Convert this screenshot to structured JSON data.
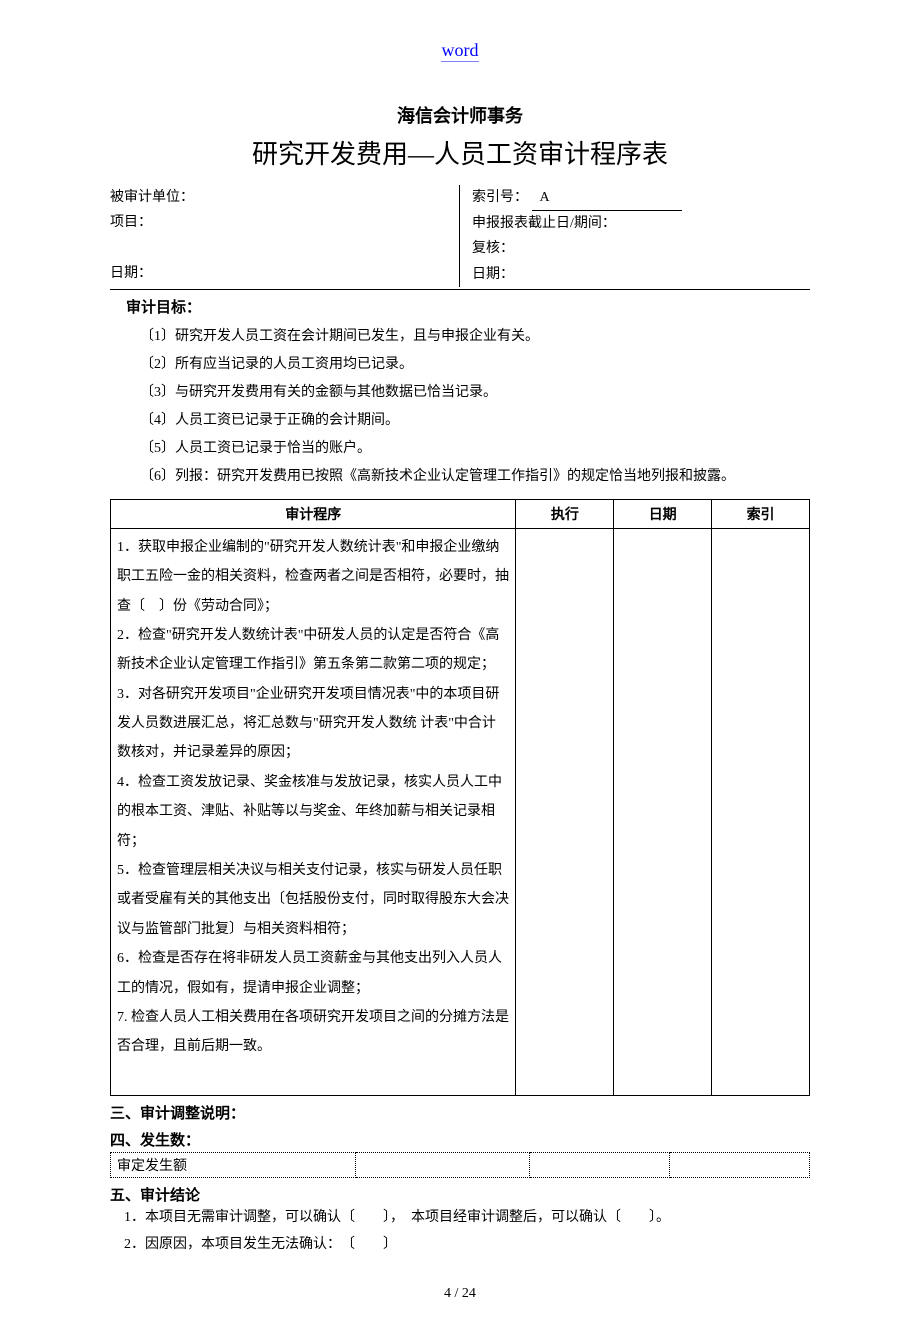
{
  "header_link": "word",
  "firm_name": "海信会计师事务",
  "document_title": "研究开发费用—人员工资审计程序表",
  "info": {
    "left": {
      "unit_label": "被审计单位：",
      "project_label": "项目：",
      "date_label": "日期："
    },
    "right": {
      "ref_label": "索引号：",
      "ref_value": "A",
      "period_label": "申报报表截止日/期间：",
      "review_label": "复核：",
      "date_label": "日期："
    }
  },
  "objectives": {
    "heading": "审计目标：",
    "items": [
      "〔1〕研究开发人员工资在会计期间已发生，且与申报企业有关。",
      "〔2〕所有应当记录的人员工资用均已记录。",
      "〔3〕与研究开发费用有关的金额与其他数据已恰当记录。",
      "〔4〕人员工资已记录于正确的会计期间。",
      "〔5〕人员工资已记录于恰当的账户。",
      "〔6〕列报：研究开发费用已按照《高新技术企业认定管理工作指引》的规定恰当地列报和披露。"
    ]
  },
  "procedures_table": {
    "headers": {
      "c1": "审计程序",
      "c2": "执行",
      "c3": "日期",
      "c4": "索引"
    },
    "steps_text": "1．获取申报企业编制的\"研究开发人数统计表\"和申报企业缴纳职工五险一金的相关资料，检查两者之间是否相符，必要时，抽查〔　〕份《劳动合同》；\n2．检查\"研究开发人数统计表\"中研发人员的认定是否符合《高新技术企业认定管理工作指引》第五条第二款第二项的规定；\n3．对各研究开发项目\"企业研究开发项目情况表\"中的本项目研发人员数进展汇总，将汇总数与\"研究开发人数统 计表\"中合计数核对，并记录差异的原因；\n4．检查工资发放记录、奖金核准与发放记录，核实人员人工中的根本工资、津贴、补贴等以与奖金、年终加薪与相关记录相符；\n5．检查管理层相关决议与相关支付记录，核实与研发人员任职或者受雇有关的其他支出〔包括股份支付，同时取得股东大会决议与监管部门批复〕与相关资料相符；\n6．检查是否存在将非研发人员工资薪金与其他支出列入人员人工的情况，假如有，提请申报企业调整；\n7. 检查人员人工相关费用在各项研究开发项目之间的分摊方法是否合理，且前后期一致。"
  },
  "post_sections": {
    "adj_heading": "三、审计调整说明：",
    "fss_heading": "四、发生数：",
    "fss_row_label": "审定发生额",
    "concl_heading": "五、审计结论",
    "concl_1": "1．本项目无需审计调整，可以确认〔　　〕，　本项目经审计调整后，可以确认〔　　〕。",
    "concl_2": "2．因原因，本项目发生无法确认：　〔　　〕"
  },
  "footer_page": "4 / 24",
  "colors": {
    "link": "#0000ff",
    "text": "#000000",
    "background": "#ffffff"
  }
}
